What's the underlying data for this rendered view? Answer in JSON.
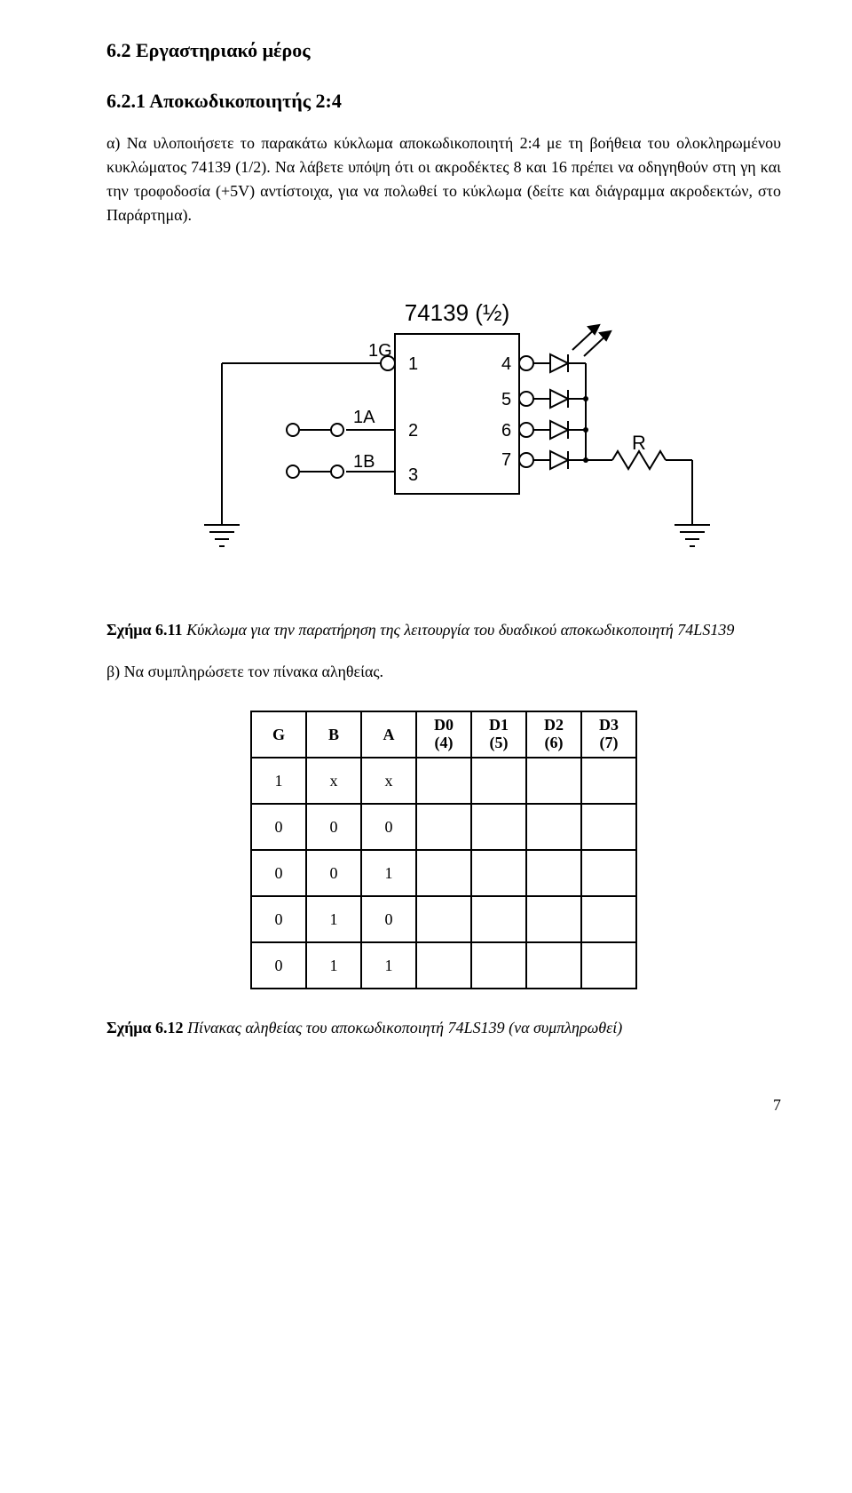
{
  "section": {
    "heading": "6.2 Εργαστηριακό μέρος",
    "subsection_heading": "6.2.1 Αποκωδικοποιητής 2:4",
    "para_a": "α) Να υλοποιήσετε το παρακάτω κύκλωμα αποκωδικοποιητή 2:4 με τη βοήθεια του ολοκληρωμένου κυκλώματος 74139 (1/2). Να λάβετε υπόψη ότι οι ακροδέκτες 8 και 16 πρέπει να οδηγηθούν στη γη και την τροφοδοσία (+5V) αντίστοιχα, για να πολωθεί το κύκλωμα (δείτε και διάγραμμα ακροδεκτών, στο Παράρτημα).",
    "para_b": "β) Να συμπληρώσετε τον πίνακα αληθείας."
  },
  "circuit": {
    "chip_label": "74139 (½)",
    "inputs": {
      "enable": "1G",
      "a": "1A",
      "b": "1B"
    },
    "pins_left": [
      "1",
      "2",
      "3"
    ],
    "pins_right": [
      "4",
      "5",
      "6",
      "7"
    ],
    "resistor_label": "R",
    "colors": {
      "stroke": "#000000",
      "background": "#ffffff"
    },
    "stroke_width": 2,
    "font_size_label": 22,
    "font_size_pin": 20,
    "font_size_title": 26
  },
  "fig611": {
    "label": "Σχήμα 6.11",
    "text": " Κύκλωμα για την παρατήρηση της λειτουργία του δυαδικού αποκωδικοποιητή 74LS139"
  },
  "truth_table": {
    "headers_simple": [
      "G",
      "B",
      "A"
    ],
    "headers_stacked": [
      {
        "top": "D0",
        "bot": "(4)"
      },
      {
        "top": "D1",
        "bot": "(5)"
      },
      {
        "top": "D2",
        "bot": "(6)"
      },
      {
        "top": "D3",
        "bot": "(7)"
      }
    ],
    "rows": [
      [
        "1",
        "x",
        "x",
        "",
        "",
        "",
        ""
      ],
      [
        "0",
        "0",
        "0",
        "",
        "",
        "",
        ""
      ],
      [
        "0",
        "0",
        "1",
        "",
        "",
        "",
        ""
      ],
      [
        "0",
        "1",
        "0",
        "",
        "",
        "",
        ""
      ],
      [
        "0",
        "1",
        "1",
        "",
        "",
        "",
        ""
      ]
    ]
  },
  "fig612": {
    "label": "Σχήμα 6.12",
    "text": " Πίνακας αληθείας του αποκωδικοποιητή 74LS139 (να συμπληρωθεί)"
  },
  "page_number": "7"
}
